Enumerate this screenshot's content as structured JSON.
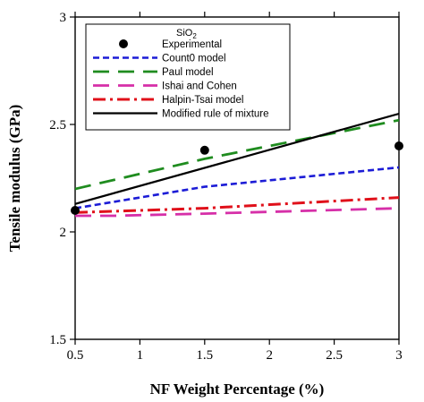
{
  "chart_data": {
    "type": "line",
    "title": "",
    "xlabel": "NF Weight Percentage (%)",
    "ylabel": "Tensile modulus (GPa)",
    "xlim": [
      0.5,
      3
    ],
    "ylim": [
      1.5,
      3
    ],
    "x_ticks": [
      "0.5",
      "1",
      "1.5",
      "2",
      "2.5",
      "3"
    ],
    "y_ticks": [
      "1.5",
      "2",
      "2.5",
      "3"
    ],
    "legend_title": "SiO",
    "legend_title_subscript": "2",
    "legend_position": "top-left",
    "series": [
      {
        "name": "Experimental",
        "style": "marker",
        "color": "#000000",
        "x": [
          0.5,
          1.5,
          3
        ],
        "y": [
          2.1,
          2.38,
          2.4
        ]
      },
      {
        "name": "Count0 model",
        "style": "short-dash",
        "color": "#1c1cd6",
        "x": [
          0.5,
          1.5,
          2,
          3
        ],
        "y": [
          2.11,
          2.21,
          2.24,
          2.3
        ]
      },
      {
        "name": "Paul model",
        "style": "long-dash",
        "color": "#1f8c1f",
        "x": [
          0.5,
          1.5,
          3
        ],
        "y": [
          2.2,
          2.34,
          2.52
        ]
      },
      {
        "name": "Ishai and Cohen",
        "style": "long-dash",
        "color": "#d62fa8",
        "x": [
          0.5,
          0.8,
          1.5,
          3
        ],
        "y": [
          2.075,
          2.075,
          2.085,
          2.11
        ]
      },
      {
        "name": "Halpin-Tsai model",
        "style": "dash-dot",
        "color": "#e0101a",
        "x": [
          0.5,
          1.5,
          3
        ],
        "y": [
          2.09,
          2.11,
          2.16
        ]
      },
      {
        "name": "Modified rule of mixture",
        "style": "solid",
        "color": "#000000",
        "x": [
          0.5,
          3
        ],
        "y": [
          2.13,
          2.55
        ]
      }
    ]
  }
}
